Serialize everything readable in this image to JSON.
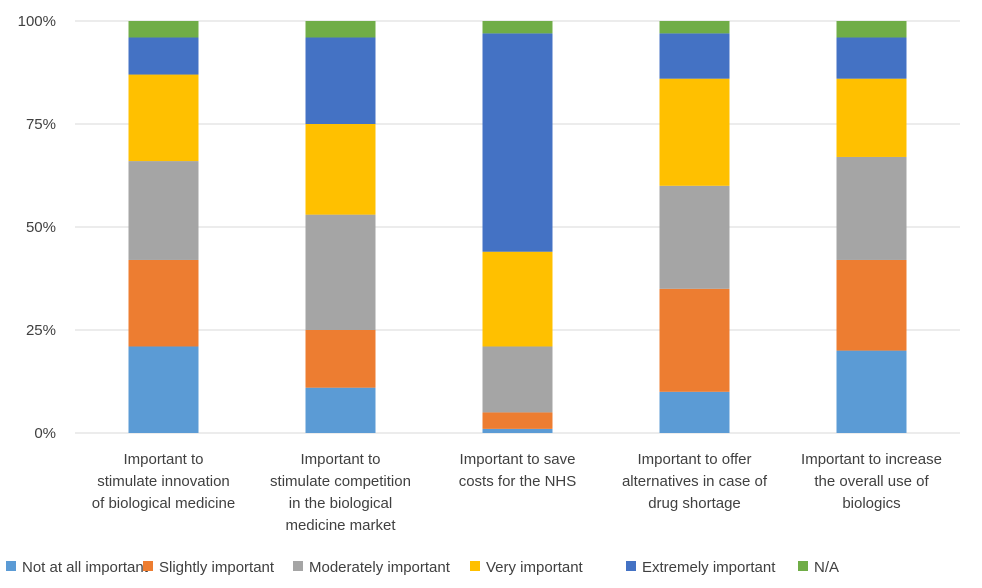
{
  "chart_data": {
    "type": "bar",
    "stacked": true,
    "percent": true,
    "title": "",
    "xlabel": "",
    "ylabel": "",
    "ylim": [
      0,
      100
    ],
    "y_ticks": [
      "0%",
      "25%",
      "50%",
      "75%",
      "100%"
    ],
    "grid": true,
    "legend_position": "bottom",
    "categories": [
      "Important to stimulate innovation of biological medicine",
      "Important to stimulate competition in the biological medicine market",
      "Important to save costs for the NHS",
      "Important to offer alternatives in case of drug shortage",
      "Important to increase the overall use of biologics"
    ],
    "category_lines": [
      [
        "Important to",
        "stimulate innovation",
        "of biological medicine"
      ],
      [
        "Important to",
        "stimulate competition",
        "in the biological",
        "medicine market"
      ],
      [
        "Important to save",
        "costs for the NHS"
      ],
      [
        "Important to offer",
        "alternatives in case of",
        "drug shortage"
      ],
      [
        "Important to increase",
        "the overall use of",
        "biologics"
      ]
    ],
    "series": [
      {
        "name": "Not at all important",
        "color": "#5B9BD5",
        "values": [
          21,
          11,
          1,
          10,
          20
        ]
      },
      {
        "name": "Slightly important",
        "color": "#ED7D31",
        "values": [
          21,
          14,
          4,
          25,
          22
        ]
      },
      {
        "name": "Moderately important",
        "color": "#A5A5A5",
        "values": [
          24,
          28,
          16,
          25,
          25
        ]
      },
      {
        "name": "Very important",
        "color": "#FFC000",
        "values": [
          21,
          22,
          23,
          26,
          19
        ]
      },
      {
        "name": "Extremely important",
        "color": "#4472C4",
        "values": [
          9,
          21,
          53,
          11,
          10
        ]
      },
      {
        "name": "N/A",
        "color": "#70AD47",
        "values": [
          4,
          4,
          3,
          3,
          4
        ]
      }
    ]
  }
}
